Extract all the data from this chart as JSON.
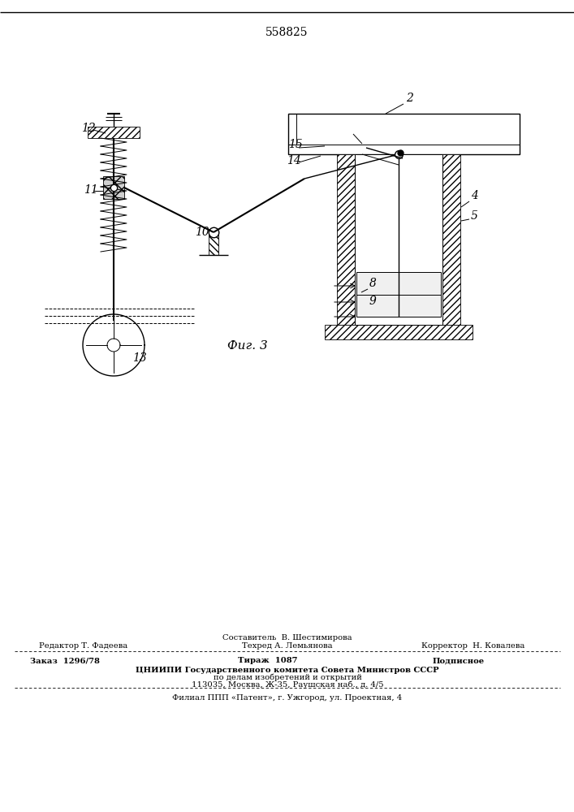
{
  "patent_number": "558825",
  "fig_label": "Фиг. 3",
  "bg_color": "#ffffff",
  "line_color": "#000000",
  "footer": {
    "line1_center": "Составитель  В. Шестимирова",
    "line2_left": "Редактор Т. Фадеева",
    "line2_center": "Техред А. Лемьянова",
    "line2_right": "Корректор  Н. Ковалева",
    "line3_left": "Заказ  1296/78",
    "line3_center": "Тираж  1087",
    "line3_right": "Подписное",
    "line4_center": "ЦНИИПИ Государственного комитета Совета Министров СССР",
    "line5_center": "по делам изобретений и открытий",
    "line6_center": "113035, Москва, Ж-35, Раушская наб., д. 4/5",
    "line7_center": "Филиал ППП «Патент», г. Ужгород, ул. Проектная, 4"
  }
}
